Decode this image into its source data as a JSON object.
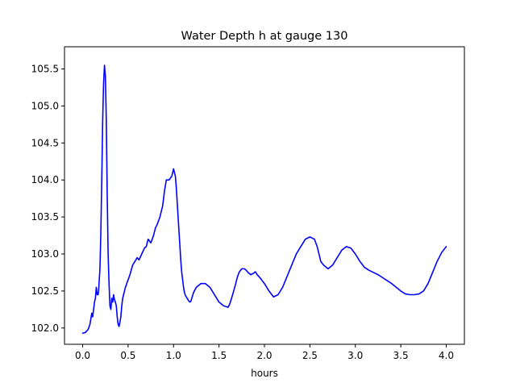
{
  "chart_data": {
    "type": "line",
    "title": "Water Depth h at gauge 130",
    "xlabel": "hours",
    "ylabel": "",
    "xlim": [
      -0.2,
      4.2
    ],
    "ylim": [
      101.78,
      105.8
    ],
    "grid": false,
    "legend": "none",
    "xticks": [
      0.0,
      0.5,
      1.0,
      1.5,
      2.0,
      2.5,
      3.0,
      3.5,
      4.0
    ],
    "xtick_labels": [
      "0.0",
      "0.5",
      "1.0",
      "1.5",
      "2.0",
      "2.5",
      "3.0",
      "3.5",
      "4.0"
    ],
    "yticks": [
      102.0,
      102.5,
      103.0,
      103.5,
      104.0,
      104.5,
      105.0,
      105.5
    ],
    "ytick_labels": [
      "102.0",
      "102.5",
      "103.0",
      "103.5",
      "104.0",
      "104.5",
      "105.0",
      "105.5"
    ],
    "series": [
      {
        "color": "#0000ff",
        "x": [
          0.0,
          0.03,
          0.06,
          0.08,
          0.1,
          0.11,
          0.12,
          0.13,
          0.14,
          0.15,
          0.16,
          0.17,
          0.175,
          0.18,
          0.19,
          0.2,
          0.21,
          0.22,
          0.23,
          0.24,
          0.25,
          0.26,
          0.27,
          0.28,
          0.29,
          0.3,
          0.31,
          0.32,
          0.33,
          0.34,
          0.35,
          0.36,
          0.37,
          0.38,
          0.39,
          0.4,
          0.41,
          0.42,
          0.43,
          0.44,
          0.45,
          0.46,
          0.47,
          0.48,
          0.49,
          0.5,
          0.52,
          0.55,
          0.6,
          0.62,
          0.65,
          0.68,
          0.7,
          0.72,
          0.75,
          0.78,
          0.8,
          0.82,
          0.85,
          0.88,
          0.9,
          0.92,
          0.95,
          0.98,
          1.0,
          1.02,
          1.03,
          1.04,
          1.05,
          1.06,
          1.07,
          1.08,
          1.09,
          1.1,
          1.11,
          1.12,
          1.13,
          1.14,
          1.15,
          1.16,
          1.17,
          1.18,
          1.19,
          1.2,
          1.22,
          1.25,
          1.28,
          1.3,
          1.35,
          1.4,
          1.45,
          1.5,
          1.55,
          1.6,
          1.62,
          1.65,
          1.68,
          1.7,
          1.72,
          1.75,
          1.78,
          1.8,
          1.82,
          1.85,
          1.88,
          1.9,
          1.92,
          1.95,
          2.0,
          2.05,
          2.1,
          2.15,
          2.2,
          2.25,
          2.3,
          2.35,
          2.4,
          2.45,
          2.5,
          2.55,
          2.58,
          2.6,
          2.62,
          2.65,
          2.7,
          2.75,
          2.8,
          2.85,
          2.9,
          2.95,
          3.0,
          3.05,
          3.1,
          3.15,
          3.2,
          3.25,
          3.3,
          3.35,
          3.4,
          3.45,
          3.5,
          3.55,
          3.6,
          3.65,
          3.7,
          3.75,
          3.8,
          3.85,
          3.9,
          3.95,
          4.0
        ],
        "y": [
          101.93,
          101.94,
          101.98,
          102.05,
          102.2,
          102.15,
          102.25,
          102.35,
          102.4,
          102.55,
          102.45,
          102.45,
          102.5,
          102.6,
          102.8,
          103.3,
          104.0,
          104.8,
          105.3,
          105.55,
          105.4,
          104.8,
          103.8,
          103.0,
          102.6,
          102.3,
          102.25,
          102.4,
          102.35,
          102.45,
          102.38,
          102.35,
          102.3,
          102.15,
          102.05,
          102.02,
          102.08,
          102.15,
          102.3,
          102.4,
          102.45,
          102.5,
          102.55,
          102.58,
          102.62,
          102.65,
          102.72,
          102.85,
          102.95,
          102.92,
          103.0,
          103.08,
          103.1,
          103.2,
          103.15,
          103.25,
          103.35,
          103.4,
          103.5,
          103.65,
          103.85,
          104.0,
          104.0,
          104.05,
          104.15,
          104.05,
          103.9,
          103.7,
          103.5,
          103.3,
          103.1,
          102.9,
          102.75,
          102.65,
          102.55,
          102.48,
          102.44,
          102.42,
          102.4,
          102.38,
          102.36,
          102.35,
          102.36,
          102.4,
          102.48,
          102.55,
          102.58,
          102.6,
          102.6,
          102.55,
          102.45,
          102.35,
          102.3,
          102.28,
          102.33,
          102.45,
          102.58,
          102.68,
          102.75,
          102.8,
          102.8,
          102.78,
          102.75,
          102.72,
          102.74,
          102.76,
          102.72,
          102.68,
          102.6,
          102.5,
          102.42,
          102.45,
          102.55,
          102.7,
          102.85,
          103.0,
          103.1,
          103.2,
          103.23,
          103.2,
          103.1,
          103.0,
          102.9,
          102.85,
          102.8,
          102.85,
          102.95,
          103.05,
          103.1,
          103.08,
          103.0,
          102.9,
          102.82,
          102.78,
          102.75,
          102.72,
          102.68,
          102.64,
          102.6,
          102.55,
          102.5,
          102.46,
          102.45,
          102.45,
          102.46,
          102.5,
          102.6,
          102.75,
          102.9,
          103.02,
          103.1
        ]
      }
    ]
  }
}
